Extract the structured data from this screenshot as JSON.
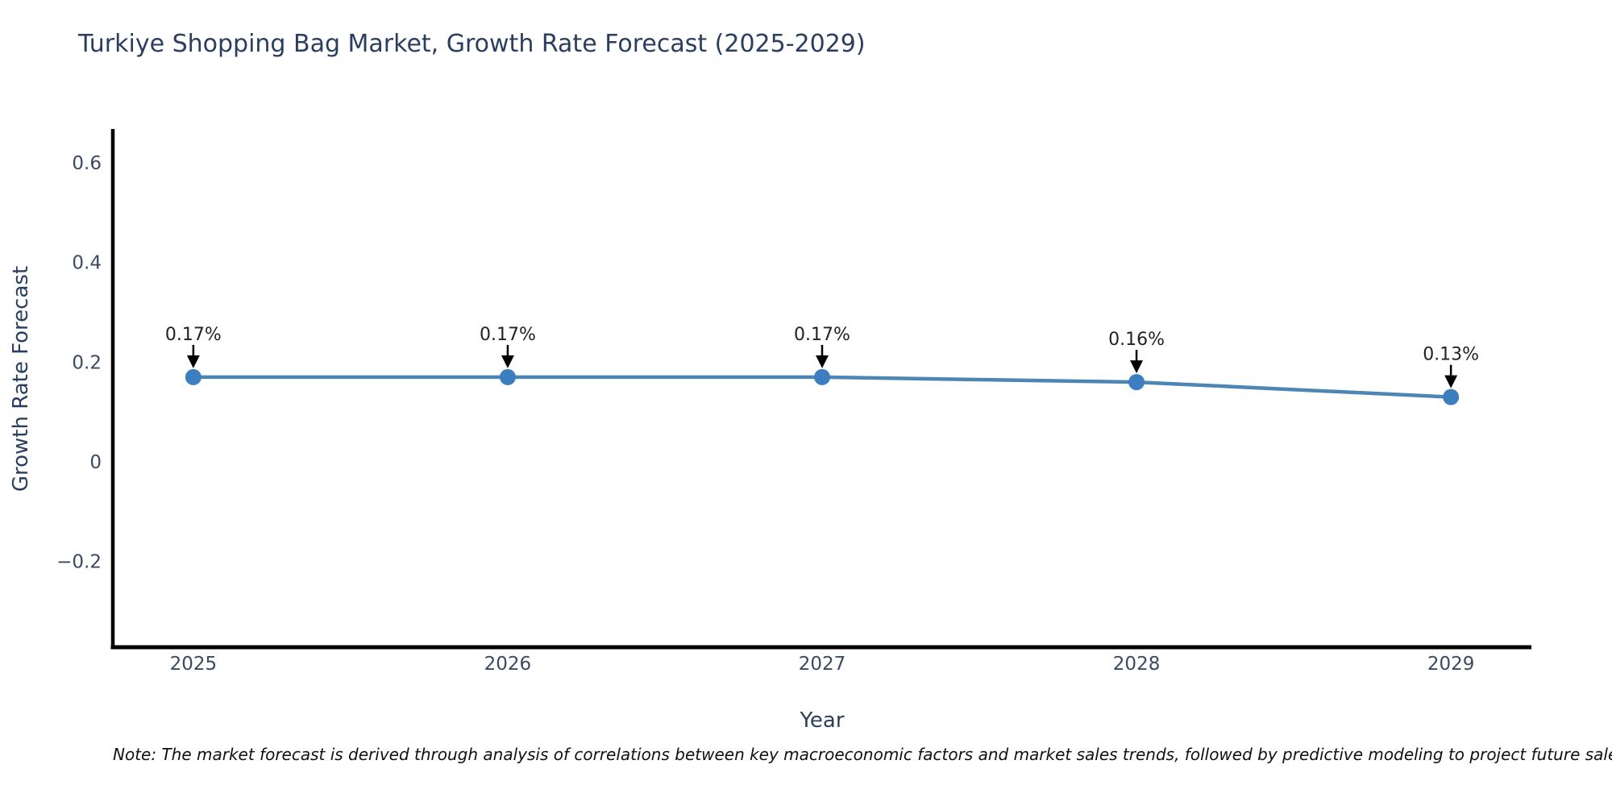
{
  "title": "Turkiye Shopping Bag Market, Growth Rate Forecast (2025-2029)",
  "note": "Note: The market forecast is derived through analysis of correlations between key macroeconomic factors and market sales trends, followed by predictive modeling to project future sales",
  "chart_data": {
    "type": "line",
    "title": "Turkiye Shopping Bag Market, Growth Rate Forecast (2025-2029)",
    "xlabel": "Year",
    "ylabel": "Growth Rate Forecast",
    "x": [
      2025,
      2026,
      2027,
      2028,
      2029
    ],
    "xtick_labels": [
      "2025",
      "2026",
      "2027",
      "2028",
      "2029"
    ],
    "series": [
      {
        "name": "Growth Rate Forecast",
        "values": [
          0.17,
          0.17,
          0.17,
          0.16,
          0.13
        ]
      }
    ],
    "point_labels": [
      "0.17%",
      "0.17%",
      "0.17%",
      "0.16%",
      "0.13%"
    ],
    "yticks": [
      0.6,
      0.4,
      0.2,
      0,
      -0.2
    ],
    "ytick_labels": [
      "0.6",
      "0.4",
      "0.2",
      "0",
      "−0.2"
    ],
    "xlim": [
      2024.744,
      2029.256
    ],
    "ylim": [
      -0.372,
      0.668
    ],
    "grid": false,
    "legend": "none",
    "line_color": "#4c86b4",
    "marker_color": "#3c7ebf",
    "axis_color": "#000000",
    "annotation_arrow_color": "#000000"
  }
}
